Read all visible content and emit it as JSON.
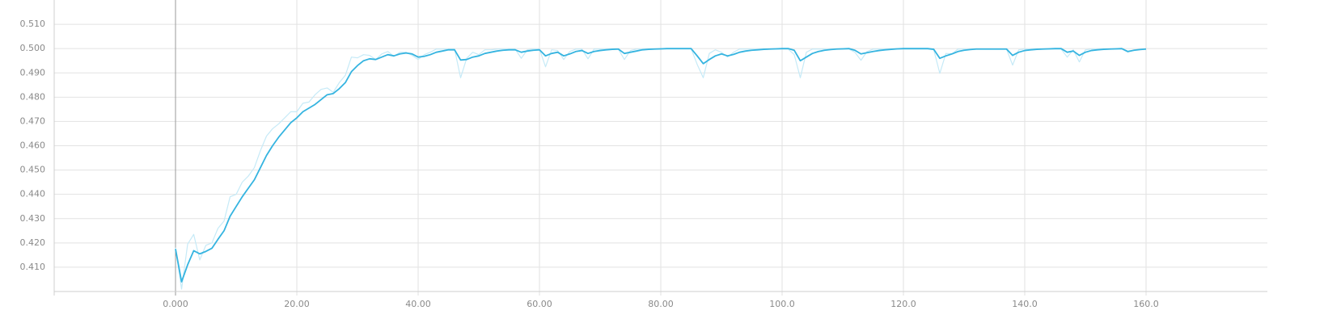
{
  "chart_data": {
    "type": "line",
    "x": [
      0,
      1,
      2,
      3,
      4,
      5,
      6,
      7,
      8,
      9,
      10,
      11,
      12,
      13,
      14,
      15,
      16,
      17,
      18,
      19,
      20,
      21,
      22,
      23,
      24,
      25,
      26,
      27,
      28,
      29,
      30,
      31,
      32,
      33,
      34,
      35,
      36,
      37,
      38,
      39,
      40,
      41,
      42,
      43,
      44,
      45,
      46,
      47,
      48,
      49,
      50,
      51,
      52,
      53,
      54,
      55,
      56,
      57,
      58,
      59,
      60,
      61,
      62,
      63,
      64,
      65,
      66,
      67,
      68,
      69,
      70,
      71,
      72,
      73,
      74,
      75,
      76,
      77,
      78,
      79,
      80,
      81,
      82,
      83,
      84,
      85,
      86,
      87,
      88,
      89,
      90,
      91,
      92,
      93,
      94,
      95,
      96,
      97,
      98,
      99,
      100,
      101,
      102,
      103,
      104,
      105,
      106,
      107,
      108,
      109,
      110,
      111,
      112,
      113,
      114,
      115,
      116,
      117,
      118,
      119,
      120,
      121,
      122,
      123,
      124,
      125,
      126,
      127,
      128,
      129,
      130,
      131,
      132,
      133,
      134,
      135,
      136,
      137,
      138,
      139,
      140,
      141,
      142,
      143,
      144,
      145,
      146,
      147,
      148,
      149,
      150,
      151,
      152,
      153,
      154,
      155,
      156,
      157,
      158,
      159,
      160
    ],
    "series": [
      {
        "color": "#c6eaf7",
        "values": [
          0.418,
          0.401,
          0.4195,
          0.4235,
          0.413,
          0.419,
          0.42,
          0.426,
          0.429,
          0.439,
          0.44,
          0.445,
          0.4475,
          0.451,
          0.458,
          0.464,
          0.467,
          0.469,
          0.4715,
          0.474,
          0.474,
          0.4775,
          0.478,
          0.481,
          0.4832,
          0.4838,
          0.482,
          0.486,
          0.489,
          0.4965,
          0.4962,
          0.4975,
          0.4972,
          0.4955,
          0.4978,
          0.4988,
          0.4968,
          0.4985,
          0.4985,
          0.4972,
          0.4955,
          0.4975,
          0.4985,
          0.4998,
          0.4998,
          0.4998,
          0.4998,
          0.488,
          0.496,
          0.4985,
          0.4975,
          0.4995,
          0.4995,
          0.4998,
          0.4998,
          0.4998,
          0.4998,
          0.496,
          0.4995,
          0.4998,
          0.4998,
          0.4925,
          0.4995,
          0.4992,
          0.4955,
          0.4988,
          0.4998,
          0.4998,
          0.4958,
          0.4998,
          0.4998,
          0.4998,
          0.4998,
          0.4998,
          0.4955,
          0.4992,
          0.4998,
          0.4998,
          0.4998,
          0.4998,
          0.4998,
          0.5,
          0.5,
          0.5,
          0.5,
          0.5,
          0.4935,
          0.488,
          0.498,
          0.4995,
          0.4985,
          0.4965,
          0.4985,
          0.4998,
          0.4998,
          0.4998,
          0.4998,
          0.4998,
          0.4998,
          0.4998,
          0.4998,
          0.4998,
          0.4975,
          0.488,
          0.4985,
          0.4998,
          0.4998,
          0.4998,
          0.4998,
          0.4998,
          0.4998,
          0.4998,
          0.4985,
          0.4952,
          0.4988,
          0.4998,
          0.4998,
          0.4998,
          0.4998,
          0.4998,
          0.4998,
          0.4998,
          0.4998,
          0.4998,
          0.4998,
          0.4995,
          0.4898,
          0.498,
          0.4978,
          0.4998,
          0.4998,
          0.4998,
          0.4998,
          0.4998,
          0.4998,
          0.4998,
          0.4998,
          0.4998,
          0.4932,
          0.4995,
          0.4998,
          0.4998,
          0.4998,
          0.4998,
          0.4998,
          0.4998,
          0.4998,
          0.4965,
          0.4995,
          0.4945,
          0.4995,
          0.4998,
          0.4998,
          0.4998,
          0.4998,
          0.4998,
          0.4998,
          0.4985,
          0.4995,
          0.4998,
          0.4998
        ]
      },
      {
        "color": "#35b4e0",
        "values": [
          0.4175,
          0.404,
          0.411,
          0.4168,
          0.4155,
          0.4165,
          0.4178,
          0.4215,
          0.425,
          0.431,
          0.435,
          0.439,
          0.4425,
          0.446,
          0.451,
          0.456,
          0.46,
          0.4635,
          0.4665,
          0.4695,
          0.4715,
          0.474,
          0.4755,
          0.477,
          0.479,
          0.481,
          0.4815,
          0.4835,
          0.486,
          0.4905,
          0.493,
          0.495,
          0.4958,
          0.4955,
          0.4965,
          0.4975,
          0.497,
          0.4978,
          0.4982,
          0.4978,
          0.4965,
          0.4968,
          0.4975,
          0.4985,
          0.499,
          0.4995,
          0.4995,
          0.4953,
          0.4955,
          0.4965,
          0.497,
          0.498,
          0.4985,
          0.499,
          0.4993,
          0.4995,
          0.4995,
          0.4985,
          0.499,
          0.4993,
          0.4995,
          0.497,
          0.498,
          0.4985,
          0.497,
          0.4978,
          0.4988,
          0.4992,
          0.498,
          0.4988,
          0.4992,
          0.4995,
          0.4997,
          0.4998,
          0.498,
          0.4985,
          0.499,
          0.4995,
          0.4997,
          0.4998,
          0.4999,
          0.5,
          0.5,
          0.5,
          0.5,
          0.5,
          0.497,
          0.4938,
          0.4955,
          0.497,
          0.4978,
          0.497,
          0.4976,
          0.4985,
          0.499,
          0.4993,
          0.4995,
          0.4997,
          0.4998,
          0.4999,
          0.5,
          0.5,
          0.4993,
          0.495,
          0.4965,
          0.498,
          0.4988,
          0.4993,
          0.4996,
          0.4998,
          0.4999,
          0.5,
          0.4993,
          0.4978,
          0.4983,
          0.4988,
          0.4992,
          0.4995,
          0.4997,
          0.4999,
          0.5,
          0.5,
          0.5,
          0.5,
          0.5,
          0.4997,
          0.496,
          0.497,
          0.4978,
          0.4988,
          0.4993,
          0.4996,
          0.4998,
          0.4998,
          0.4998,
          0.4998,
          0.4998,
          0.4998,
          0.4972,
          0.4985,
          0.4992,
          0.4995,
          0.4997,
          0.4998,
          0.4999,
          0.5,
          0.5,
          0.4985,
          0.499,
          0.4972,
          0.4985,
          0.4992,
          0.4995,
          0.4997,
          0.4998,
          0.4999,
          0.5,
          0.4988,
          0.4993,
          0.4996,
          0.4998
        ]
      }
    ],
    "xlim": [
      -20,
      180
    ],
    "ylim": [
      0.4,
      0.52
    ],
    "xticks": [
      {
        "value": 0,
        "label": "0.000"
      },
      {
        "value": 20,
        "label": "20.00"
      },
      {
        "value": 40,
        "label": "40.00"
      },
      {
        "value": 60,
        "label": "60.00"
      },
      {
        "value": 80,
        "label": "80.00"
      },
      {
        "value": 100,
        "label": "100.0"
      },
      {
        "value": 120,
        "label": "120.0"
      },
      {
        "value": 140,
        "label": "140.0"
      },
      {
        "value": 160,
        "label": "160.0"
      }
    ],
    "yticks": [
      {
        "value": 0.41,
        "label": "0.410"
      },
      {
        "value": 0.42,
        "label": "0.420"
      },
      {
        "value": 0.43,
        "label": "0.430"
      },
      {
        "value": 0.44,
        "label": "0.440"
      },
      {
        "value": 0.45,
        "label": "0.450"
      },
      {
        "value": 0.46,
        "label": "0.460"
      },
      {
        "value": 0.47,
        "label": "0.470"
      },
      {
        "value": 0.48,
        "label": "0.480"
      },
      {
        "value": 0.49,
        "label": "0.490"
      },
      {
        "value": 0.5,
        "label": "0.500"
      },
      {
        "value": 0.51,
        "label": "0.510"
      }
    ],
    "grid": true
  }
}
